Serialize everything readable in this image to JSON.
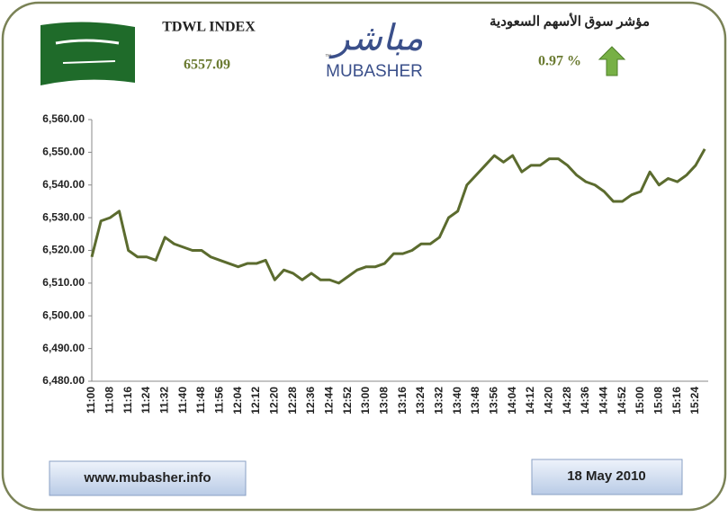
{
  "chart_data": {
    "type": "line",
    "index_name": "TDWL INDEX",
    "index_value": "6557.09",
    "logo_arabic": "مباشر",
    "logo_tm": "™",
    "logo_latin": "MUBASHER",
    "title_arabic": "مؤشر سوق الأسهم السعودية",
    "change": "0.97 %",
    "website": "www.mubasher.info",
    "date": "18 May 2010",
    "color": "#5b6b2e",
    "categories": [
      "11:00",
      null,
      "11:08",
      null,
      "11:16",
      null,
      "11:24",
      null,
      "11:32",
      null,
      "11:40",
      null,
      "11:48",
      null,
      "11:56",
      null,
      "12:04",
      null,
      "12:12",
      null,
      "12:20",
      null,
      "12:28",
      null,
      "12:36",
      null,
      "12:44",
      null,
      "12:52",
      null,
      "13:00",
      null,
      "13:08",
      null,
      "13:16",
      null,
      "13:24",
      null,
      "13:32",
      null,
      "13:40",
      null,
      "13:48",
      null,
      "13:56",
      null,
      "14:04",
      null,
      "14:12",
      null,
      "14:20",
      null,
      "14:28",
      null,
      "14:36",
      null,
      "14:44",
      null,
      "14:52",
      null,
      "15:00",
      null,
      "15:08",
      null,
      "15:16",
      null,
      "15:24",
      null
    ],
    "values": [
      6518,
      6529,
      6530,
      6532,
      6520,
      6518,
      6518,
      6517,
      6524,
      6522,
      6521,
      6520,
      6520,
      6518,
      6517,
      6516,
      6515,
      6516,
      6516,
      6517,
      6511,
      6514,
      6513,
      6511,
      6513,
      6511,
      6511,
      6510,
      6512,
      6514,
      6515,
      6515,
      6516,
      6519,
      6519,
      6520,
      6522,
      6522,
      6524,
      6530,
      6532,
      6540,
      6543,
      6546,
      6549,
      6547,
      6549,
      6544,
      6546,
      6546,
      6548,
      6548,
      6546,
      6543,
      6541,
      6540,
      6538,
      6535,
      6535,
      6537,
      6538,
      6544,
      6540,
      6542,
      6541,
      6543,
      6546,
      6551
    ],
    "ylim": [
      6480,
      6560
    ],
    "yticks": [
      {
        "value": 6480,
        "label": "6,480.00"
      },
      {
        "value": 6490,
        "label": "6,490.00"
      },
      {
        "value": 6500,
        "label": "6,500.00"
      },
      {
        "value": 6510,
        "label": "6,510.00"
      },
      {
        "value": 6520,
        "label": "6,520.00"
      },
      {
        "value": 6530,
        "label": "6,530.00"
      },
      {
        "value": 6540,
        "label": "6,540.00"
      },
      {
        "value": 6550,
        "label": "6,550.00"
      },
      {
        "value": 6560,
        "label": "6,560.00"
      }
    ]
  }
}
